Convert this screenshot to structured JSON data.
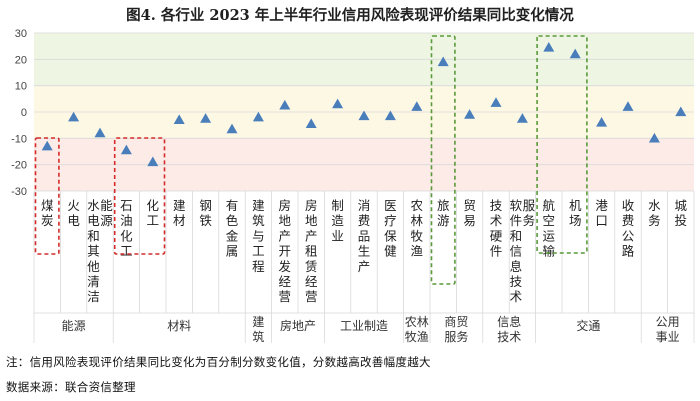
{
  "title": "图4. 各行业 2023 年上半年行业信用风险表现评价结果同比变化情况",
  "note": "注：信用风险表现评价结果同比变化为百分制分数变化值，分数越高改善幅度越大",
  "source": "数据来源：联合资信整理",
  "colors": {
    "marker": "#4a7ebb",
    "band_green": "#eef5e3",
    "band_yellow": "#fdf8e4",
    "band_red": "#fcebe7",
    "highlight_red": "#d42a2a",
    "highlight_green": "#5a9a3a",
    "grid": "#d9d9d9"
  },
  "chart_data": {
    "type": "scatter",
    "ylim": [
      -30,
      30
    ],
    "y_ticks": [
      30,
      20,
      10,
      0,
      -10,
      -20,
      -30
    ],
    "bands": [
      {
        "from": 10,
        "to": 30,
        "color": "green"
      },
      {
        "from": -10,
        "to": 10,
        "color": "yellow"
      },
      {
        "from": -30,
        "to": -10,
        "color": "red"
      }
    ],
    "categories": [
      "煤炭",
      "火电",
      "水电和其他清洁能源",
      "石油化工",
      "化工",
      "建材",
      "钢铁",
      "有色金属",
      "建筑与工程",
      "房地产开发经营",
      "房地产租赁经营",
      "制造业",
      "消费品生产",
      "医疗保健",
      "农林牧渔",
      "旅游",
      "贸易",
      "技术硬件",
      "软件和信息技术服务",
      "航空运输",
      "机场",
      "港口",
      "收费公路",
      "水务",
      "城投"
    ],
    "values": [
      -13,
      -2,
      -8,
      -14.5,
      -19,
      -3,
      -2.5,
      -6.5,
      -2,
      2.5,
      -4.5,
      3,
      -1.5,
      -1.5,
      2,
      19,
      -1,
      3.5,
      -2.5,
      24.5,
      22,
      -4,
      2,
      -10,
      0
    ],
    "groups": [
      {
        "label": "能源",
        "start": 0,
        "end": 2
      },
      {
        "label": "材料",
        "start": 3,
        "end": 7
      },
      {
        "label": "建筑",
        "start": 8,
        "end": 8
      },
      {
        "label": "房地产",
        "start": 9,
        "end": 10
      },
      {
        "label": "工业制造",
        "start": 11,
        "end": 13
      },
      {
        "label": "农林牧渔",
        "start": 14,
        "end": 14
      },
      {
        "label": "商贸服务",
        "start": 15,
        "end": 16
      },
      {
        "label": "信息技术",
        "start": 17,
        "end": 18
      },
      {
        "label": "交通",
        "start": 19,
        "end": 22
      },
      {
        "label": "公用事业",
        "start": 23,
        "end": 24
      }
    ],
    "highlights": [
      {
        "start": 0,
        "end": 0,
        "color": "red"
      },
      {
        "start": 3,
        "end": 4,
        "color": "red"
      },
      {
        "start": 15,
        "end": 15,
        "color": "green"
      },
      {
        "start": 19,
        "end": 20,
        "color": "green"
      }
    ]
  }
}
